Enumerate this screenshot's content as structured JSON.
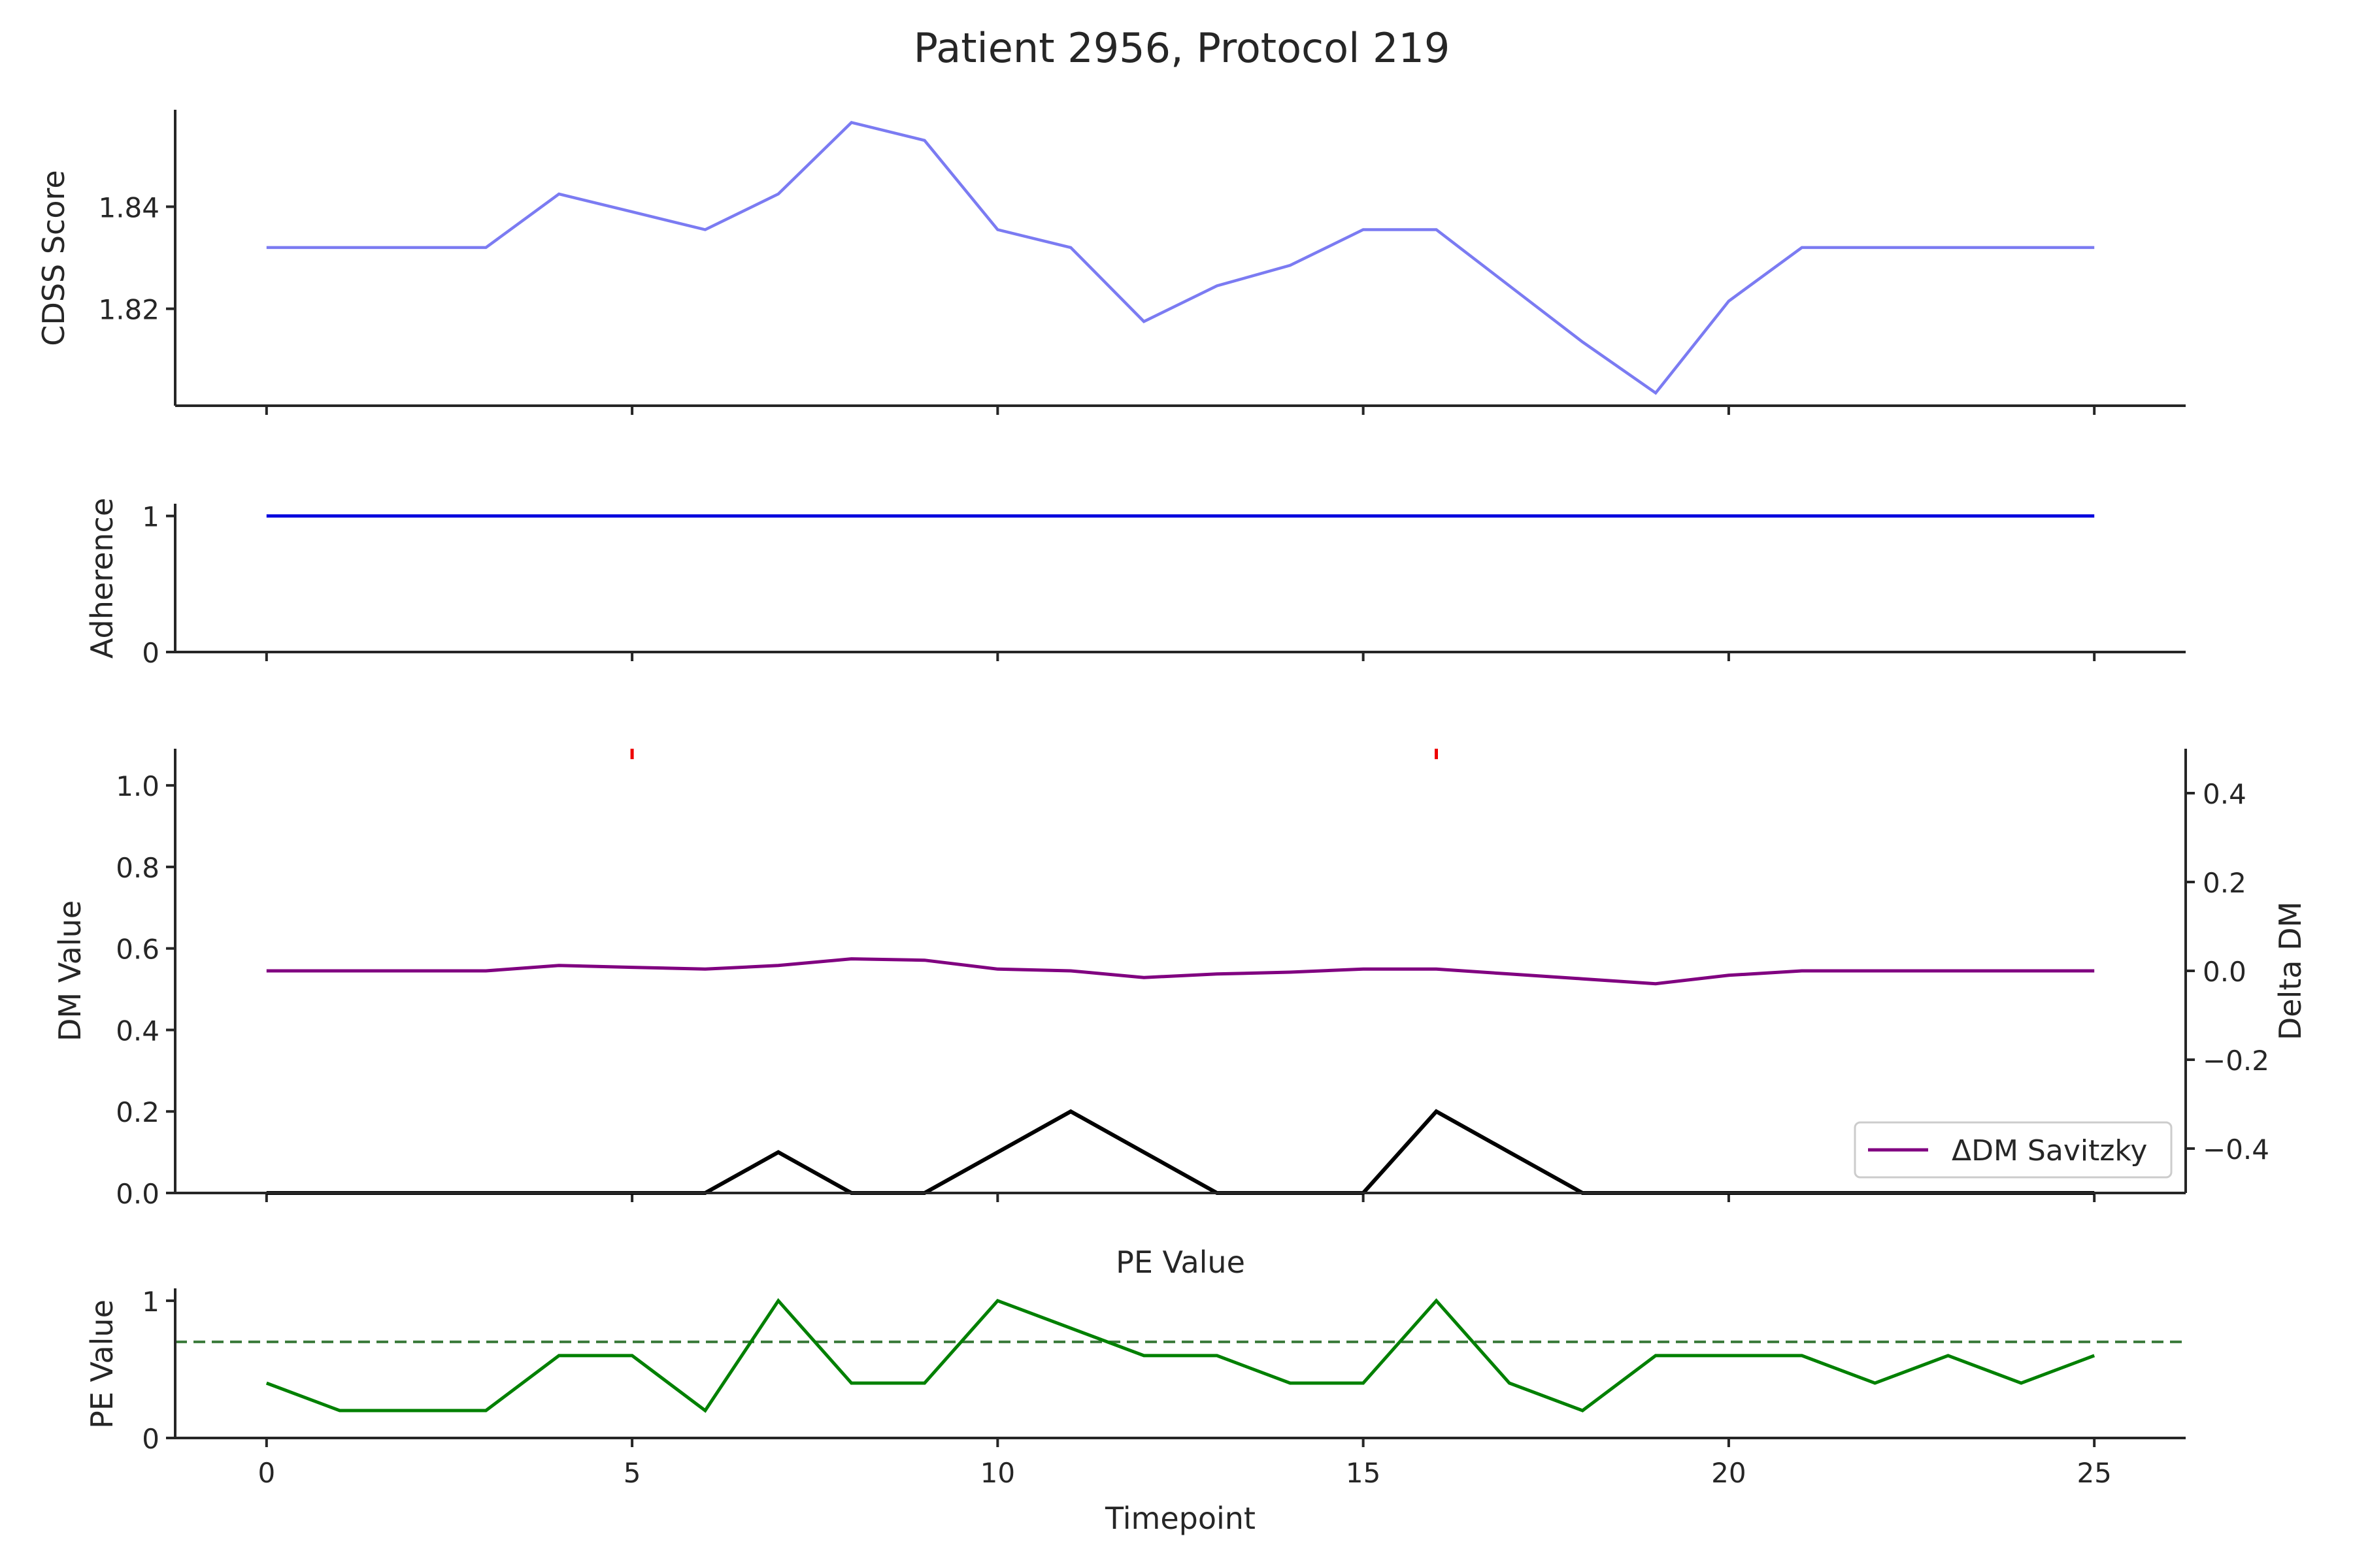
{
  "title": "Patient 2956, Protocol 219",
  "x_axis": {
    "label": "Timepoint",
    "lim": [
      -1.25,
      26.25
    ],
    "ticks": [
      0,
      5,
      10,
      15,
      20,
      25
    ]
  },
  "panels": {
    "cdss": {
      "ylabel": "CDSS Score"
    },
    "adherence": {
      "ylabel": "Adherence"
    },
    "dm": {
      "ylabel": "DM Value",
      "ylabel_right": "Delta DM",
      "legend_label": "ΔDM Savitzky"
    },
    "pe": {
      "ylabel": "PE Value",
      "subtitle": "PE Value"
    }
  },
  "colors": {
    "cdss": "#7b7bf2",
    "adherence": "#0000dd",
    "dm": "#000000",
    "delta_dm": "#800080",
    "pe": "#008000",
    "pe_threshold": "#3a7a3a",
    "event_marker": "#ee0000"
  },
  "chart_data": [
    {
      "type": "line",
      "panel": "cdss",
      "ylabel": "CDSS Score",
      "x": [
        0,
        1,
        2,
        3,
        4,
        5,
        6,
        7,
        8,
        9,
        10,
        11,
        12,
        13,
        14,
        15,
        16,
        17,
        18,
        19,
        20,
        21,
        22,
        23,
        24,
        25
      ],
      "series": [
        {
          "values": [
            1.832,
            1.832,
            1.832,
            1.832,
            1.8425,
            1.839,
            1.8355,
            1.8425,
            1.8565,
            1.853,
            1.8355,
            1.832,
            1.8175,
            1.8245,
            1.8285,
            1.8355,
            1.8355,
            1.8245,
            1.8135,
            1.8035,
            1.8215,
            1.832,
            1.832,
            1.832,
            1.832,
            1.832
          ]
        }
      ],
      "ylim": [
        1.801,
        1.859
      ],
      "yticks": [
        1.82,
        1.84
      ]
    },
    {
      "type": "line",
      "panel": "adherence",
      "ylabel": "Adherence",
      "x": [
        0,
        1,
        2,
        3,
        4,
        5,
        6,
        7,
        8,
        9,
        10,
        11,
        12,
        13,
        14,
        15,
        16,
        17,
        18,
        19,
        20,
        21,
        22,
        23,
        24,
        25
      ],
      "series": [
        {
          "values": [
            1,
            1,
            1,
            1,
            1,
            1,
            1,
            1,
            1,
            1,
            1,
            1,
            1,
            1,
            1,
            1,
            1,
            1,
            1,
            1,
            1,
            1,
            1,
            1,
            1,
            1
          ]
        }
      ],
      "ylim": [
        0,
        1.09
      ],
      "yticks": [
        0,
        1
      ]
    },
    {
      "type": "line",
      "panel": "dm",
      "ylabel": "DM Value",
      "ylabel_right": "Delta DM",
      "x": [
        0,
        1,
        2,
        3,
        4,
        5,
        6,
        7,
        8,
        9,
        10,
        11,
        12,
        13,
        14,
        15,
        16,
        17,
        18,
        19,
        20,
        21,
        22,
        23,
        24,
        25
      ],
      "series": [
        {
          "values": [
            0,
            0,
            0,
            0,
            0,
            0,
            0,
            0.1,
            0,
            0,
            0.1,
            0.2,
            0.1,
            0,
            0,
            0,
            0.2,
            0.1,
            0,
            0,
            0,
            0,
            0,
            0,
            0,
            0
          ],
          "axis": "left"
        },
        {
          "name": "ΔDM Savitzky",
          "values": [
            0,
            0,
            0,
            0,
            0.012,
            0.008,
            0.004,
            0.012,
            0.027,
            0.024,
            0.004,
            0,
            -0.015,
            -0.007,
            -0.003,
            0.004,
            0.004,
            -0.007,
            -0.018,
            -0.029,
            -0.01,
            0,
            0,
            0,
            0,
            0
          ],
          "axis": "right"
        }
      ],
      "event_markers_x": [
        5,
        16
      ],
      "ylim": [
        0,
        1.09
      ],
      "yticks": [
        0.0,
        0.2,
        0.4,
        0.6,
        0.8,
        1.0
      ],
      "ylim_right": [
        -0.5,
        0.5
      ],
      "yticks_right": [
        -0.4,
        -0.2,
        0.0,
        0.2,
        0.4
      ],
      "legend": "lower right"
    },
    {
      "type": "line",
      "panel": "pe",
      "title": "PE Value",
      "ylabel": "PE Value",
      "x": [
        0,
        1,
        2,
        3,
        4,
        5,
        6,
        7,
        8,
        9,
        10,
        11,
        12,
        13,
        14,
        15,
        16,
        17,
        18,
        19,
        20,
        21,
        22,
        23,
        24,
        25
      ],
      "series": [
        {
          "values": [
            0.4,
            0.2,
            0.2,
            0.2,
            0.6,
            0.6,
            0.2,
            1.0,
            0.4,
            0.4,
            1.0,
            0.8,
            0.6,
            0.6,
            0.4,
            0.4,
            1.0,
            0.4,
            0.2,
            0.6,
            0.6,
            0.6,
            0.4,
            0.6,
            0.4,
            0.6
          ]
        }
      ],
      "threshold": 0.7,
      "ylim": [
        0,
        1.09
      ],
      "yticks": [
        0,
        1
      ]
    }
  ]
}
